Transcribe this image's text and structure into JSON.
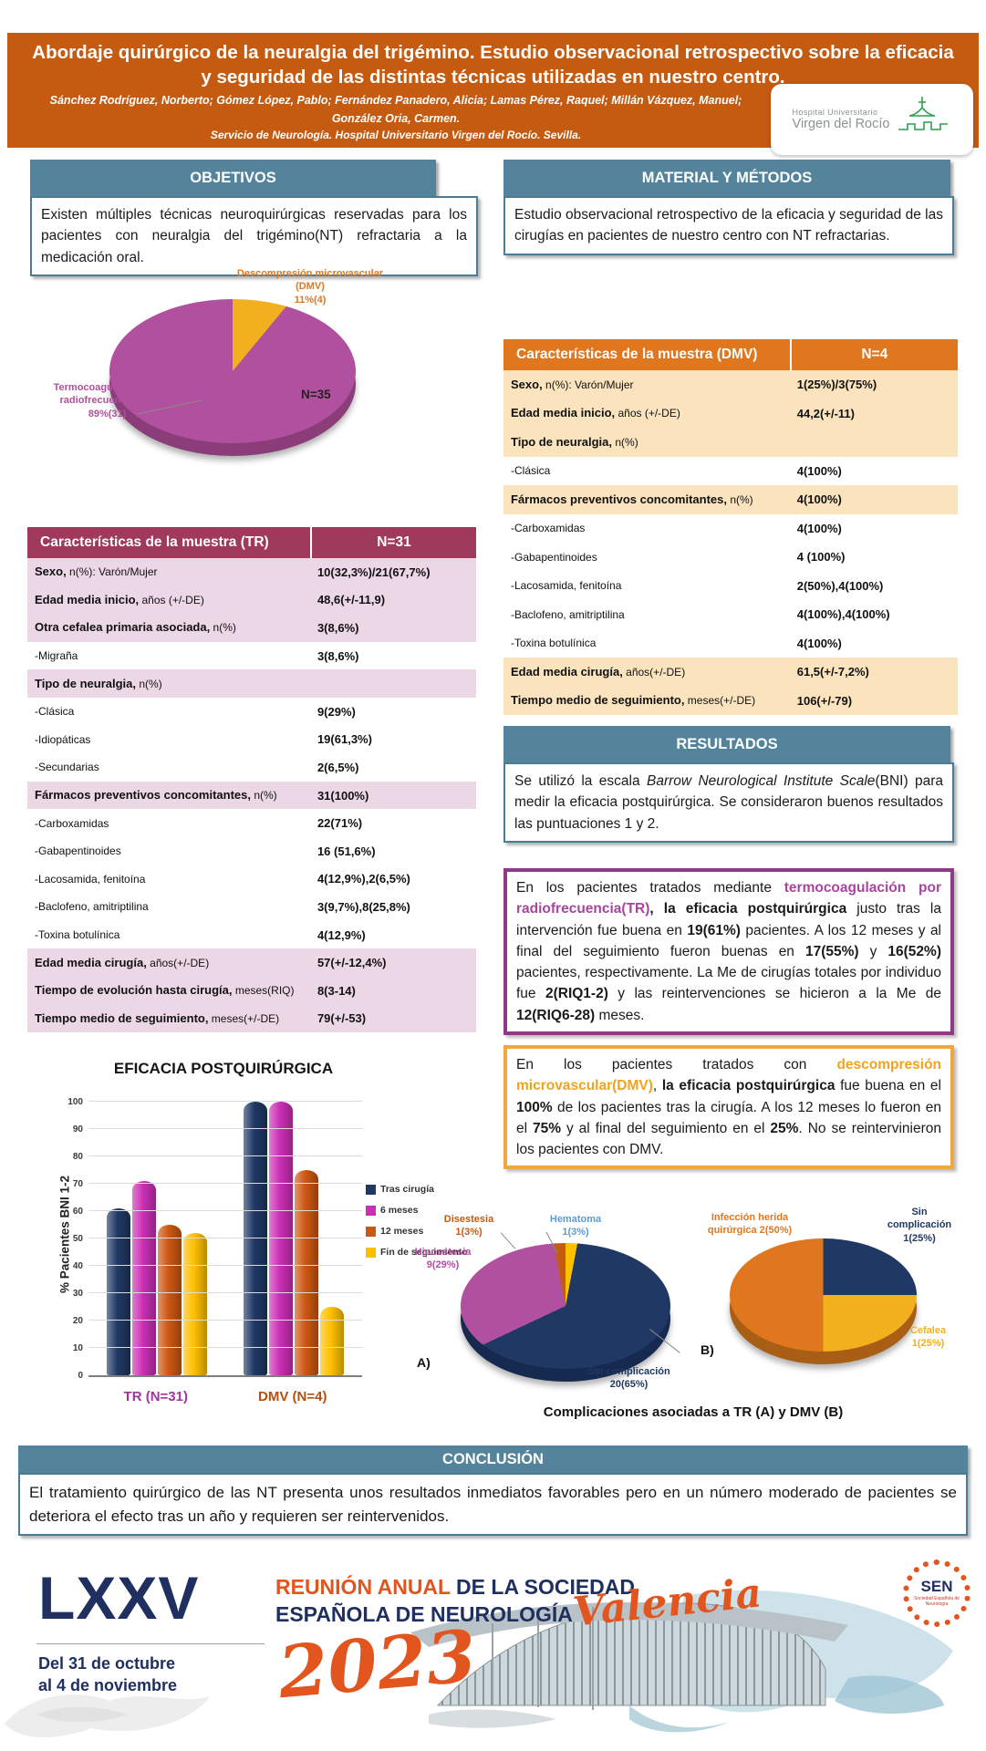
{
  "poster": {
    "title": "Abordaje quirúrgico de la neuralgia del trigémino. Estudio observacional retrospectivo sobre la eficacia y seguridad de las distintas técnicas utilizadas en nuestro centro.",
    "authors_line1": "Sánchez Rodríguez, Norberto; Gómez López, Pablo; Fernández Panadero, Alicia; Lamas Pérez, Raquel; Millán Vázquez, Manuel;",
    "authors_line2": "González Oria, Carmen.",
    "service_line": "Servicio de Neurología. Hospital Universitario Virgen del Rocío. Sevilla.",
    "hospital_logo": {
      "line1": "Hospital Universitario",
      "line2": "Virgen del Rocío"
    }
  },
  "sections": {
    "objetivos": {
      "heading": "OBJETIVOS",
      "text": "Existen múltiples técnicas neuroquirúrgicas reservadas para los pacientes con neuralgia del trigémino(NT) refractaria a la medicación oral."
    },
    "material": {
      "heading": "MATERIAL Y MÉTODOS",
      "text": "Estudio observacional retrospectivo de la eficacia y seguridad de las cirugías en pacientes de nuestro centro con NT refractarias."
    },
    "resultados": {
      "heading": "RESULTADOS",
      "segments": [
        {
          "t": "Se utilizó la escala ",
          "s": "n"
        },
        {
          "t": "Barrow Neurological Institute Scale",
          "s": "i"
        },
        {
          "t": "(BNI) para medir la eficacia postquirúrgica. Se consideraron buenos resultados las puntuaciones 1 y 2.",
          "s": "n"
        }
      ]
    },
    "tr_box_segments": [
      {
        "t": "En los pacientes tratados mediante ",
        "s": "n"
      },
      {
        "t": "termocoagulación por radiofrecuencia(TR)",
        "s": "tr"
      },
      {
        "t": ", la eficacia postquirúrgica",
        "s": "b"
      },
      {
        "t": " justo tras la intervención fue buena en ",
        "s": "n"
      },
      {
        "t": "19(61%)",
        "s": "b"
      },
      {
        "t": " pacientes. A los 12 meses y al final del seguimiento fueron buenas en ",
        "s": "n"
      },
      {
        "t": "17(55%)",
        "s": "b"
      },
      {
        "t": " y ",
        "s": "n"
      },
      {
        "t": "16(52%)",
        "s": "b"
      },
      {
        "t": " pacientes, respectivamente. La Me de cirugías totales por individuo fue ",
        "s": "n"
      },
      {
        "t": "2(RIQ1-2)",
        "s": "b"
      },
      {
        "t": " y las reintervenciones se hicieron a la Me de ",
        "s": "n"
      },
      {
        "t": "12(RIQ6-28)",
        "s": "b"
      },
      {
        "t": " meses.",
        "s": "n"
      }
    ],
    "dmv_box_segments": [
      {
        "t": "En los pacientes tratados con ",
        "s": "n"
      },
      {
        "t": "descompresión microvascular(DMV)",
        "s": "dmv"
      },
      {
        "t": ", ",
        "s": "n"
      },
      {
        "t": "la eficacia postquirúrgica",
        "s": "b"
      },
      {
        "t": " fue buena en el ",
        "s": "n"
      },
      {
        "t": "100%",
        "s": "b"
      },
      {
        "t": " de los pacientes tras la cirugía. A los 12 meses lo fueron en el ",
        "s": "n"
      },
      {
        "t": "75%",
        "s": "b"
      },
      {
        "t": " y al final del seguimiento en el ",
        "s": "n"
      },
      {
        "t": "25%",
        "s": "b"
      },
      {
        "t": ". No se reintervinieron los pacientes con DMV.",
        "s": "n"
      }
    ],
    "conclusion": {
      "heading": "CONCLUSIÓN",
      "text": "El tratamiento quirúrgico de las NT presenta unos resultados inmediatos favorables pero en un número moderado de pacientes se deteriora el efecto tras un año y requieren ser reintervenidos."
    }
  },
  "tr_table": {
    "header": [
      "Características de la muestra (TR)",
      "N=31"
    ],
    "rows": [
      {
        "s": "Sexo,",
        "r": " n(%): Varón/Mujer",
        "v": "10(32,3%)/21(67,7%)",
        "hl": true
      },
      {
        "s": "Edad media inicio,",
        "r": " años (+/-DE)",
        "v": "48,6(+/-11,9)",
        "hl": true
      },
      {
        "s": "Otra cefalea primaria asociada,",
        "r": " n(%)",
        "v": "3(8,6%)",
        "hl": true
      },
      {
        "s": "",
        "r": "-Migraña",
        "v": "3(8,6%)",
        "hl": false
      },
      {
        "s": "Tipo de neuralgia,",
        "r": " n(%)",
        "v": "",
        "hl": true
      },
      {
        "s": "",
        "r": "-Clásica",
        "v": "9(29%)",
        "hl": false
      },
      {
        "s": "",
        "r": "-Idiopáticas",
        "v": "19(61,3%)",
        "hl": false
      },
      {
        "s": "",
        "r": "-Secundarias",
        "v": "2(6,5%)",
        "hl": false
      },
      {
        "s": "Fármacos preventivos concomitantes,",
        "r": " n(%)",
        "v": "31(100%)",
        "hl": true
      },
      {
        "s": "",
        "r": "-Carboxamidas",
        "v": "22(71%)",
        "hl": false
      },
      {
        "s": "",
        "r": "-Gabapentinoides",
        "v": "16 (51,6%)",
        "hl": false
      },
      {
        "s": "",
        "r": "-Lacosamida, fenitoína",
        "v": "4(12,9%),2(6,5%)",
        "hl": false
      },
      {
        "s": "",
        "r": "-Baclofeno, amitriptilina",
        "v": "3(9,7%),8(25,8%)",
        "hl": false
      },
      {
        "s": "",
        "r": "-Toxina botulínica",
        "v": "4(12,9%)",
        "hl": false
      },
      {
        "s": "Edad media cirugía,",
        "r": " años(+/-DE)",
        "v": "57(+/-12,4%)",
        "hl": true
      },
      {
        "s": "Tiempo de evolución hasta cirugía,",
        "r": " meses(RIQ)",
        "v": "8(3-14)",
        "hl": true
      },
      {
        "s": "Tiempo medio de seguimiento,",
        "r": " meses(+/-DE)",
        "v": "79(+/-53)",
        "hl": true
      }
    ]
  },
  "dmv_table": {
    "header": [
      "Características de la muestra (DMV)",
      "N=4"
    ],
    "rows": [
      {
        "s": "Sexo,",
        "r": " n(%): Varón/Mujer",
        "v": "1(25%)/3(75%)",
        "hl": true
      },
      {
        "s": "Edad media inicio,",
        "r": " años (+/-DE)",
        "v": "44,2(+/-11)",
        "hl": true
      },
      {
        "s": "Tipo de neuralgia,",
        "r": " n(%)",
        "v": "",
        "hl": true
      },
      {
        "s": "",
        "r": "-Clásica",
        "v": "4(100%)",
        "hl": false
      },
      {
        "s": "Fármacos preventivos concomitantes,",
        "r": " n(%)",
        "v": "4(100%)",
        "hl": true
      },
      {
        "s": "",
        "r": "-Carboxamidas",
        "v": "4(100%)",
        "hl": false
      },
      {
        "s": "",
        "r": "-Gabapentinoides",
        "v": "4 (100%)",
        "hl": false
      },
      {
        "s": "",
        "r": "-Lacosamida, fenitoína",
        "v": "2(50%),4(100%)",
        "hl": false
      },
      {
        "s": "",
        "r": "-Baclofeno, amitriptilina",
        "v": "4(100%),4(100%)",
        "hl": false
      },
      {
        "s": "",
        "r": "-Toxina botulínica",
        "v": "4(100%)",
        "hl": false
      },
      {
        "s": "Edad media cirugía,",
        "r": " años(+/-DE)",
        "v": "61,5(+/-7,2%)",
        "hl": true
      },
      {
        "s": "Tiempo medio de seguimiento,",
        "r": " meses(+/-DE)",
        "v": "106(+/-79)",
        "hl": true
      }
    ]
  },
  "chart_data": [
    {
      "id": "tecnicas-pie",
      "type": "pie",
      "n_label": "N=35",
      "rim_color": "#8a3d79",
      "slices": [
        {
          "label": "Descompresión microvascular (DMV)",
          "value_pct": 11,
          "n": 4,
          "display": "Descompresión microvascular\n(DMV)\n11%(4)",
          "color": "#f2b01e"
        },
        {
          "label": "Termocoagulación por radiofrecuencia (TR)",
          "value_pct": 89,
          "n": 31,
          "display": "Termocoagulación por\nradiofrecuencia(TR)\n89%(31)",
          "color": "#b0509e"
        }
      ]
    },
    {
      "id": "eficacia-bar",
      "type": "bar",
      "title": "EFICACIA POSTQUIRÚRGICA",
      "xlabel": "",
      "ylabel": "% Pacientes BNI 1-2",
      "ylim": [
        0,
        100
      ],
      "ytick_step": 10,
      "grid": true,
      "legend_position": "right",
      "categories": [
        "TR (N=31)",
        "DMV (N=4)"
      ],
      "series": [
        {
          "name": "Tras cirugía",
          "color": "#1f3864",
          "values": [
            61,
            100
          ]
        },
        {
          "name": "6 meses",
          "color": "#cb2fb4",
          "values": [
            71,
            100
          ]
        },
        {
          "name": "12 meses",
          "color": "#cc5712",
          "values": [
            55,
            75
          ]
        },
        {
          "name": "Fin de seguimiento",
          "color": "#ffc000",
          "values": [
            52,
            25
          ]
        }
      ]
    },
    {
      "id": "complicaciones-tr-pie",
      "type": "pie",
      "tag": "A)",
      "rim_color": "#16294f",
      "slices": [
        {
          "label": "Hematoma",
          "value_pct": 3,
          "n": 1,
          "display": "Hematoma\n1(3%)",
          "color": "#ffc000"
        },
        {
          "label": "Sin complicación",
          "value_pct": 65,
          "n": 20,
          "display": "Sin complicación\n20(65%)",
          "color": "#1f3864"
        },
        {
          "label": "Hipoestesia",
          "value_pct": 29,
          "n": 9,
          "display": "Hipoestesia\n9(29%)",
          "color": "#b0509e"
        },
        {
          "label": "Disestesia",
          "value_pct": 3,
          "n": 1,
          "display": "Disestesia\n1(3%)",
          "color": "#c55a11"
        }
      ]
    },
    {
      "id": "complicaciones-dmv-pie",
      "type": "pie",
      "tag": "B)",
      "rim_color": "#a85e14",
      "slices": [
        {
          "label": "Sin complicación",
          "value_pct": 25,
          "n": 1,
          "display": "Sin\ncomplicación\n1(25%)",
          "color": "#1f3864"
        },
        {
          "label": "Cefalea",
          "value_pct": 25,
          "n": 1,
          "display": "Cefalea\n1(25%)",
          "color": "#f2b01e"
        },
        {
          "label": "Infección herida quirúrgica",
          "value_pct": 50,
          "n": 2,
          "display": "Infección herida\nquirúrgica 2(50%)",
          "color": "#e0771f"
        }
      ]
    }
  ],
  "complications_caption": "Complicaciones asociadas a TR (A) y DMV (B)",
  "footer": {
    "roman": "LXXV",
    "line1_orange": "REUNIÓN ANUAL",
    "line1_navy": " DE LA SOCIEDAD",
    "line2": "ESPAÑOLA DE NEUROLOGÍA",
    "dates": "Del 31 de octubre\nal 4 de noviembre",
    "year": "2023",
    "city": "Valencia",
    "sen": "SEN",
    "sen_sub": "Sociedad Española de Neurología"
  },
  "colors": {
    "band_orange": "#c55a11",
    "teal_header": "#53849b",
    "tr_table_header": "#a03a5d",
    "tr_row_shade": "#ecd7e6",
    "dmv_table_header": "#e0771f",
    "dmv_row_shade": "#fae3bd",
    "tr_accent": "#a8469e",
    "dmv_accent": "#f2a21d",
    "navy": "#1f3864",
    "magenta": "#cb2fb4",
    "bar_orange": "#cc5712",
    "yellow": "#ffc000",
    "footer_navy": "#1f3060",
    "footer_orange": "#e2551e"
  }
}
